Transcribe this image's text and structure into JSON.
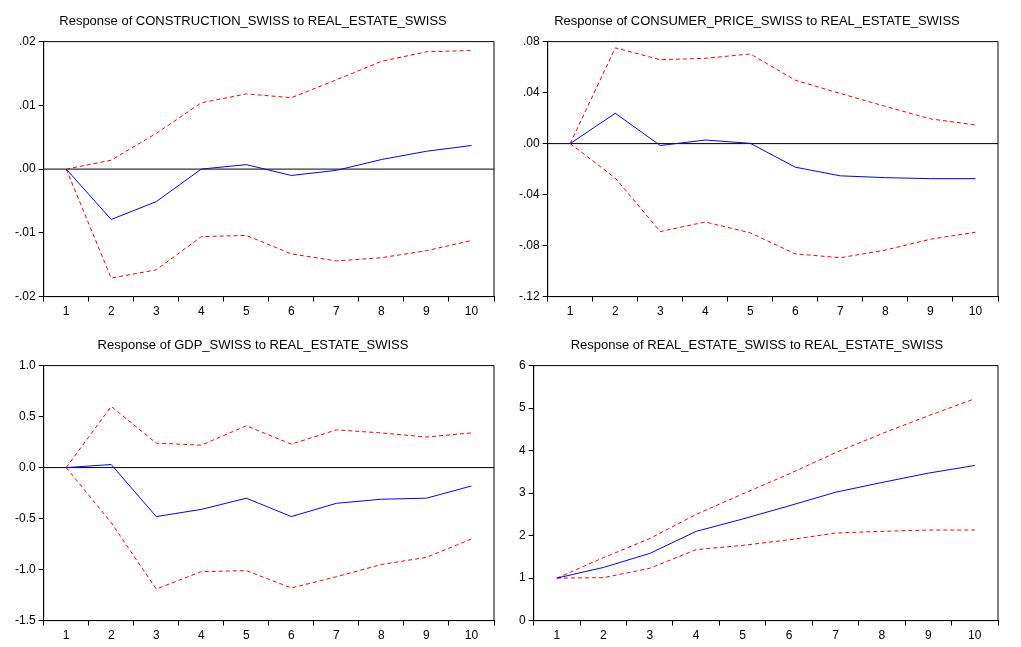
{
  "chart_data": [
    {
      "type": "line",
      "title": "Response of CONSTRUCTION_SWISS to REAL_ESTATE_SWISS",
      "categories": [
        "1",
        "2",
        "3",
        "4",
        "5",
        "6",
        "7",
        "8",
        "9",
        "10"
      ],
      "marker": "none",
      "grid": false,
      "legend": false,
      "ylim": [
        -0.02,
        0.02
      ],
      "yticks": [
        {
          "value": -0.02,
          "label": "-.02"
        },
        {
          "value": -0.01,
          "label": "-.01"
        },
        {
          "value": 0,
          "label": ".00"
        },
        {
          "value": 0.01,
          "label": ".01"
        },
        {
          "value": 0.02,
          "label": ".02"
        }
      ],
      "ref_lines": [
        {
          "axis": "y",
          "value": 0,
          "color": "#000000"
        }
      ],
      "series": [
        {
          "color": "#0000ff",
          "line_style": "solid",
          "values": [
            0,
            -0.0079,
            -0.0051,
            0,
            0.0007,
            -0.001,
            -0.0002,
            0.0015,
            0.0028,
            0.0037
          ]
        },
        {
          "color": "#ff0000",
          "line_style": "dashed",
          "values": [
            0,
            0.0014,
            0.0056,
            0.0104,
            0.0118,
            0.0112,
            0.014,
            0.0169,
            0.0184,
            0.0186
          ]
        },
        {
          "color": "#ff0000",
          "line_style": "dashed",
          "values": [
            0,
            -0.0171,
            -0.0158,
            -0.0106,
            -0.0104,
            -0.0133,
            -0.0144,
            -0.0139,
            -0.0128,
            -0.0112
          ]
        }
      ]
    },
    {
      "type": "line",
      "title": "Response of CONSUMER_PRICE_SWISS to REAL_ESTATE_SWISS",
      "categories": [
        "1",
        "2",
        "3",
        "4",
        "5",
        "6",
        "7",
        "8",
        "9",
        "10"
      ],
      "marker": "none",
      "grid": false,
      "legend": false,
      "ylim": [
        -0.12,
        0.08
      ],
      "yticks": [
        {
          "value": -0.12,
          "label": "-.12"
        },
        {
          "value": -0.08,
          "label": "-.08"
        },
        {
          "value": -0.04,
          "label": "-.04"
        },
        {
          "value": 0,
          "label": ".00"
        },
        {
          "value": 0.04,
          "label": ".04"
        },
        {
          "value": 0.08,
          "label": ".08"
        }
      ],
      "ref_lines": [
        {
          "axis": "y",
          "value": 0,
          "color": "#000000"
        }
      ],
      "series": [
        {
          "color": "#0000ff",
          "line_style": "solid",
          "values": [
            0,
            0.0238,
            -0.0015,
            0.0028,
            0.0002,
            -0.0185,
            -0.0253,
            -0.0267,
            -0.0275,
            -0.0275
          ]
        },
        {
          "color": "#ff0000",
          "line_style": "dashed",
          "values": [
            0,
            0.0751,
            0.0658,
            0.0669,
            0.0703,
            0.0497,
            0.0393,
            0.0292,
            0.0194,
            0.0146
          ]
        },
        {
          "color": "#ff0000",
          "line_style": "dashed",
          "values": [
            0,
            -0.027,
            -0.069,
            -0.0615,
            -0.07,
            -0.0865,
            -0.0895,
            -0.0835,
            -0.075,
            -0.0695
          ]
        }
      ]
    },
    {
      "type": "line",
      "title": "Response of GDP_SWISS to REAL_ESTATE_SWISS",
      "categories": [
        "1",
        "2",
        "3",
        "4",
        "5",
        "6",
        "7",
        "8",
        "9",
        "10"
      ],
      "marker": "none",
      "grid": false,
      "legend": false,
      "ylim": [
        -1.5,
        1.0
      ],
      "yticks": [
        {
          "value": -1.5,
          "label": "-1.5"
        },
        {
          "value": -1.0,
          "label": "-1.0"
        },
        {
          "value": -0.5,
          "label": "-0.5"
        },
        {
          "value": 0,
          "label": "0.0"
        },
        {
          "value": 0.5,
          "label": "0.5"
        },
        {
          "value": 1.0,
          "label": "1.0"
        }
      ],
      "ref_lines": [
        {
          "axis": "y",
          "value": 0,
          "color": "#000000"
        }
      ],
      "series": [
        {
          "color": "#0000ff",
          "line_style": "solid",
          "values": [
            0,
            0.03,
            -0.48,
            -0.41,
            -0.3,
            -0.48,
            -0.35,
            -0.31,
            -0.3,
            -0.18
          ]
        },
        {
          "color": "#ff0000",
          "line_style": "dashed",
          "values": [
            0,
            0.6,
            0.24,
            0.22,
            0.41,
            0.23,
            0.37,
            0.34,
            0.3,
            0.34
          ]
        },
        {
          "color": "#ff0000",
          "line_style": "dashed",
          "values": [
            0,
            -0.54,
            -1.19,
            -1.02,
            -1.01,
            -1.18,
            -1.07,
            -0.95,
            -0.88,
            -0.7
          ]
        }
      ]
    },
    {
      "type": "line",
      "title": "Response of REAL_ESTATE_SWISS to REAL_ESTATE_SWISS",
      "categories": [
        "1",
        "2",
        "3",
        "4",
        "5",
        "6",
        "7",
        "8",
        "9",
        "10"
      ],
      "marker": "none",
      "grid": false,
      "legend": false,
      "ylim": [
        0,
        6
      ],
      "yticks": [
        0,
        1,
        2,
        3,
        4,
        5,
        6
      ],
      "series": [
        {
          "color": "#0000ff",
          "line_style": "solid",
          "values": [
            1,
            1.25,
            1.58,
            2.1,
            2.39,
            2.7,
            3.02,
            3.25,
            3.47,
            3.65
          ]
        },
        {
          "color": "#ff0000",
          "line_style": "dashed",
          "values": [
            1,
            1.48,
            1.93,
            2.5,
            2.98,
            3.45,
            3.95,
            4.4,
            4.82,
            5.22
          ]
        },
        {
          "color": "#ff0000",
          "line_style": "dashed",
          "values": [
            1,
            1.01,
            1.23,
            1.67,
            1.77,
            1.9,
            2.06,
            2.1,
            2.13,
            2.13
          ]
        }
      ]
    }
  ]
}
